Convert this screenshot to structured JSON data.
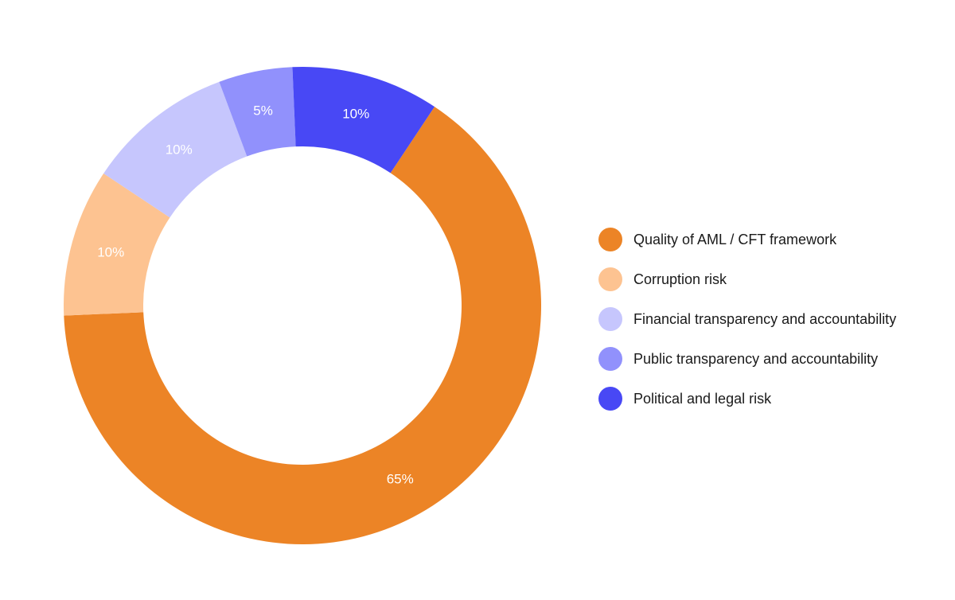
{
  "chart_data": {
    "type": "pie",
    "donut": true,
    "categories": [
      "Quality of AML / CFT framework",
      "Corruption risk",
      "Financial transparency and accountability",
      "Public transparency and accountability",
      "Political and legal risk"
    ],
    "values": [
      65,
      10,
      10,
      5,
      10
    ],
    "data_labels": [
      "65%",
      "10%",
      "10%",
      "5%",
      "10%"
    ],
    "colors": [
      "#EC8426",
      "#FDC391",
      "#C6C6FD",
      "#9191FC",
      "#4848F5"
    ],
    "legend_position": "right",
    "grid": false
  }
}
